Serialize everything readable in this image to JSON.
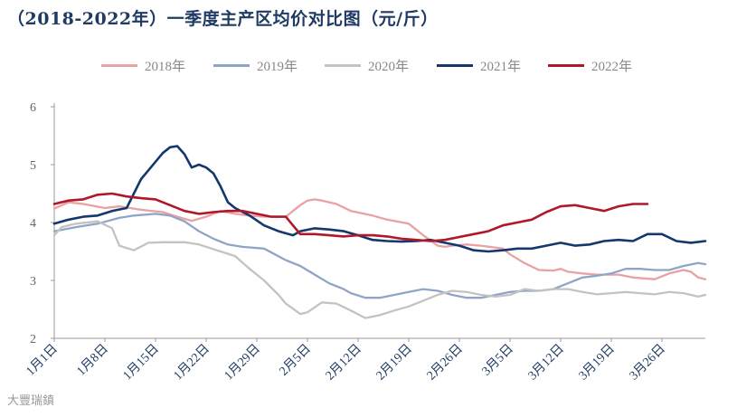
{
  "chart_data": {
    "type": "line",
    "title": "（2018-2022年）一季度主产区均价对比图（元/斤）",
    "xlabel": "",
    "ylabel": "",
    "ylim": [
      2,
      6
    ],
    "yticks": [
      "2",
      "3",
      "4",
      "5",
      "6"
    ],
    "x_tick_labels": [
      "1月1日",
      "1月8日",
      "1月15日",
      "1月22日",
      "1月29日",
      "2月5日",
      "2月12日",
      "2月19日",
      "2月26日",
      "3月5日",
      "3月12日",
      "3月19日",
      "3月26日"
    ],
    "x_day_range": [
      1,
      91
    ],
    "grid": false,
    "legend_position": "top-center",
    "series": [
      {
        "name": "2018年",
        "color": "#e9a1a4",
        "x": [
          1,
          3,
          5,
          8,
          10,
          13,
          16,
          18,
          20,
          22,
          24,
          26,
          28,
          30,
          33,
          35,
          36,
          37,
          38,
          40,
          42,
          45,
          47,
          50,
          52,
          54,
          55,
          56,
          58,
          60,
          63,
          64,
          66,
          68,
          70,
          71,
          72,
          74,
          76,
          79,
          81,
          84,
          86,
          88,
          89,
          90,
          91
        ],
        "y": [
          4.24,
          4.35,
          4.32,
          4.25,
          4.28,
          4.22,
          4.18,
          4.1,
          4.03,
          4.1,
          4.2,
          4.15,
          4.12,
          4.1,
          4.1,
          4.3,
          4.38,
          4.4,
          4.38,
          4.32,
          4.2,
          4.12,
          4.05,
          3.98,
          3.78,
          3.6,
          3.58,
          3.6,
          3.62,
          3.6,
          3.55,
          3.45,
          3.3,
          3.18,
          3.17,
          3.2,
          3.15,
          3.12,
          3.1,
          3.1,
          3.05,
          3.02,
          3.12,
          3.18,
          3.15,
          3.05,
          3.02
        ]
      },
      {
        "name": "2019年",
        "color": "#8fa5c6",
        "x": [
          1,
          4,
          7,
          10,
          12,
          15,
          17,
          19,
          21,
          23,
          25,
          27,
          30,
          33,
          35,
          37,
          39,
          41,
          42,
          44,
          46,
          48,
          50,
          52,
          54,
          56,
          58,
          60,
          62,
          64,
          66,
          68,
          70,
          72,
          74,
          76,
          78,
          80,
          82,
          84,
          86,
          88,
          90,
          91
        ],
        "y": [
          3.85,
          3.92,
          3.98,
          4.08,
          4.12,
          4.15,
          4.12,
          4.02,
          3.85,
          3.72,
          3.62,
          3.58,
          3.55,
          3.35,
          3.25,
          3.1,
          2.95,
          2.85,
          2.78,
          2.7,
          2.7,
          2.75,
          2.8,
          2.85,
          2.82,
          2.75,
          2.7,
          2.7,
          2.75,
          2.8,
          2.82,
          2.82,
          2.85,
          2.95,
          3.05,
          3.08,
          3.12,
          3.2,
          3.2,
          3.18,
          3.18,
          3.25,
          3.3,
          3.28
        ]
      },
      {
        "name": "2020年",
        "color": "#c3c3c3",
        "x": [
          1,
          2,
          4,
          7,
          9,
          10,
          12,
          14,
          16,
          19,
          21,
          24,
          26,
          28,
          30,
          32,
          33,
          35,
          36,
          38,
          40,
          42,
          44,
          46,
          48,
          50,
          52,
          54,
          56,
          58,
          60,
          62,
          64,
          66,
          68,
          70,
          72,
          74,
          76,
          78,
          80,
          82,
          84,
          86,
          88,
          90,
          91
        ],
        "y": [
          3.78,
          3.92,
          3.98,
          4.02,
          3.9,
          3.6,
          3.52,
          3.65,
          3.66,
          3.66,
          3.62,
          3.5,
          3.42,
          3.2,
          3.0,
          2.75,
          2.6,
          2.42,
          2.45,
          2.62,
          2.6,
          2.48,
          2.35,
          2.4,
          2.48,
          2.55,
          2.65,
          2.75,
          2.82,
          2.8,
          2.75,
          2.72,
          2.75,
          2.85,
          2.82,
          2.85,
          2.85,
          2.8,
          2.76,
          2.78,
          2.8,
          2.78,
          2.76,
          2.8,
          2.78,
          2.72,
          2.75
        ]
      },
      {
        "name": "2021年",
        "color": "#14386c",
        "x": [
          1,
          3,
          5,
          7,
          9,
          11,
          13,
          14,
          15,
          16,
          17,
          18,
          19,
          20,
          21,
          22,
          23,
          24,
          25,
          26,
          28,
          30,
          32,
          34,
          35,
          37,
          39,
          41,
          43,
          45,
          47,
          49,
          51,
          53,
          55,
          57,
          59,
          61,
          63,
          65,
          67,
          69,
          71,
          73,
          75,
          77,
          79,
          81,
          83,
          85,
          87,
          89,
          91
        ],
        "y": [
          3.98,
          4.05,
          4.1,
          4.12,
          4.2,
          4.25,
          4.75,
          4.9,
          5.05,
          5.2,
          5.3,
          5.32,
          5.18,
          4.95,
          5.0,
          4.95,
          4.85,
          4.62,
          4.35,
          4.25,
          4.12,
          3.95,
          3.85,
          3.78,
          3.85,
          3.9,
          3.88,
          3.85,
          3.78,
          3.7,
          3.68,
          3.67,
          3.68,
          3.7,
          3.65,
          3.6,
          3.52,
          3.5,
          3.52,
          3.55,
          3.55,
          3.6,
          3.65,
          3.6,
          3.62,
          3.68,
          3.7,
          3.68,
          3.8,
          3.8,
          3.68,
          3.65,
          3.68
        ]
      },
      {
        "name": "2022年",
        "color": "#b0182a",
        "x": [
          1,
          3,
          5,
          7,
          9,
          11,
          13,
          15,
          17,
          19,
          21,
          23,
          25,
          27,
          29,
          31,
          33,
          35,
          37,
          39,
          41,
          43,
          45,
          47,
          49,
          51,
          53,
          55,
          57,
          59,
          61,
          63,
          65,
          67,
          69,
          71,
          73,
          75,
          77,
          79,
          81,
          83
        ],
        "y": [
          4.32,
          4.38,
          4.4,
          4.48,
          4.5,
          4.45,
          4.42,
          4.4,
          4.3,
          4.2,
          4.15,
          4.18,
          4.2,
          4.2,
          4.15,
          4.1,
          4.1,
          3.8,
          3.8,
          3.78,
          3.76,
          3.78,
          3.78,
          3.76,
          3.72,
          3.7,
          3.68,
          3.7,
          3.75,
          3.8,
          3.85,
          3.95,
          4.0,
          4.05,
          4.18,
          4.28,
          4.3,
          4.25,
          4.2,
          4.28,
          4.32,
          4.32
        ]
      }
    ]
  },
  "watermark_text": "大豐瑞鎮"
}
